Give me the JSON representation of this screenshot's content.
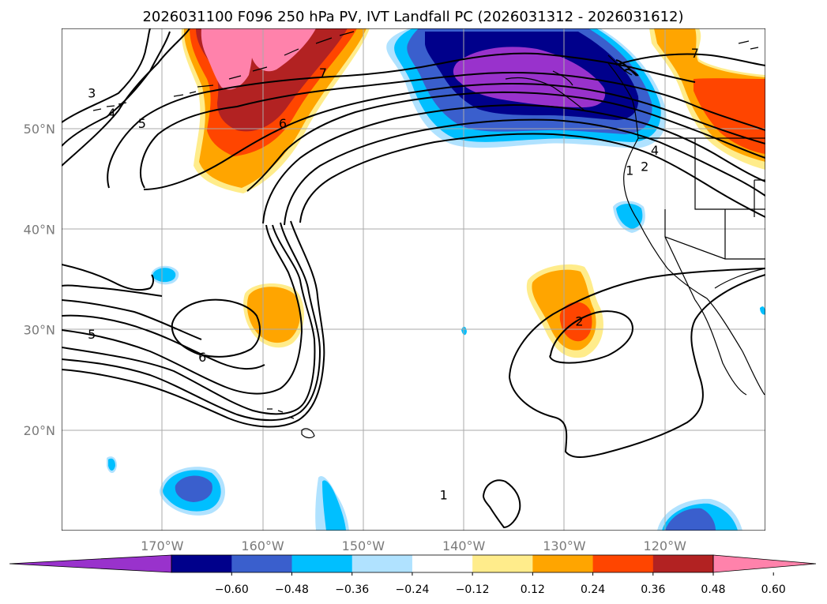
{
  "chart_data": {
    "type": "filled_contour_map",
    "title": "2026031100 F096 250 hPa PV, IVT Landfall PC (2026031312 - 2026031612)",
    "lon_range": [
      -180,
      -110
    ],
    "lat_range": [
      10,
      60
    ],
    "latitude_ticks": [
      "50°N",
      "40°N",
      "30°N",
      "20°N"
    ],
    "longitude_ticks": [
      "170°W",
      "160°W",
      "150°W",
      "140°W",
      "130°W",
      "120°W"
    ],
    "colorbar": {
      "levels": [
        -0.6,
        -0.48,
        -0.36,
        -0.24,
        -0.12,
        0.12,
        0.24,
        0.36,
        0.48,
        0.6
      ],
      "tick_labels": [
        "−0.60",
        "−0.48",
        "−0.36",
        "−0.24",
        "−0.12",
        "0.12",
        "0.24",
        "0.36",
        "0.48",
        "0.60"
      ],
      "colors": [
        "#9932cc",
        "#00008b",
        "#3a5fcd",
        "#00bfff",
        "#b0e2ff",
        "#ffffff",
        "#ffec8b",
        "#ffa500",
        "#ff4500",
        "#b22222",
        "#ff82ab"
      ],
      "extend": "both"
    },
    "filled_regions": [
      {
        "name": "north-central-pacific-positive",
        "center": [
          -162,
          55
        ],
        "max_value": 0.66
      },
      {
        "name": "gulf-of-alaska-negative",
        "center": [
          -135,
          54
        ],
        "min_value": -0.66
      },
      {
        "name": "northeast-corner-positive",
        "center": [
          -113,
          53
        ],
        "max_value": 0.45
      },
      {
        "name": "subtropical-positive-160w",
        "center": [
          -157.5,
          31.5
        ],
        "max_value": 0.3
      },
      {
        "name": "subtropical-positive-130w",
        "center": [
          -130,
          31
        ],
        "max_value": 0.42
      },
      {
        "name": "small-negative-175w",
        "center": [
          -171,
          35
        ],
        "min_value": -0.3
      },
      {
        "name": "small-negative-140w",
        "center": [
          -140,
          30
        ],
        "min_value": -0.2
      },
      {
        "name": "california-negative",
        "center": [
          -123,
          41
        ],
        "min_value": -0.3
      },
      {
        "name": "southwest-negative",
        "center": [
          -168,
          14
        ],
        "min_value": -0.45
      },
      {
        "name": "south-negative-150w",
        "center": [
          -150,
          12
        ],
        "min_value": -0.3
      },
      {
        "name": "southeast-negative",
        "center": [
          -114,
          11
        ],
        "min_value": -0.45
      }
    ],
    "contour_labels": [
      {
        "text": "3",
        "lon": -177,
        "lat": 53.5
      },
      {
        "text": "4",
        "lon": -175,
        "lat": 51.5
      },
      {
        "text": "5",
        "lon": -172,
        "lat": 50.5
      },
      {
        "text": "6",
        "lon": -158,
        "lat": 50.5
      },
      {
        "text": "7",
        "lon": -154,
        "lat": 55.5
      },
      {
        "text": "7",
        "lon": -117,
        "lat": 57.5
      },
      {
        "text": "4",
        "lon": -121,
        "lat": 47.8
      },
      {
        "text": "1",
        "lon": -123.5,
        "lat": 45.8
      },
      {
        "text": "2",
        "lon": -122,
        "lat": 46.2
      },
      {
        "text": "5",
        "lon": -177,
        "lat": 29.5
      },
      {
        "text": "6",
        "lon": -166,
        "lat": 27.2
      },
      {
        "text": "2",
        "lon": -128.5,
        "lat": 30.8
      },
      {
        "text": "1",
        "lon": -142,
        "lat": 13.5
      }
    ]
  }
}
